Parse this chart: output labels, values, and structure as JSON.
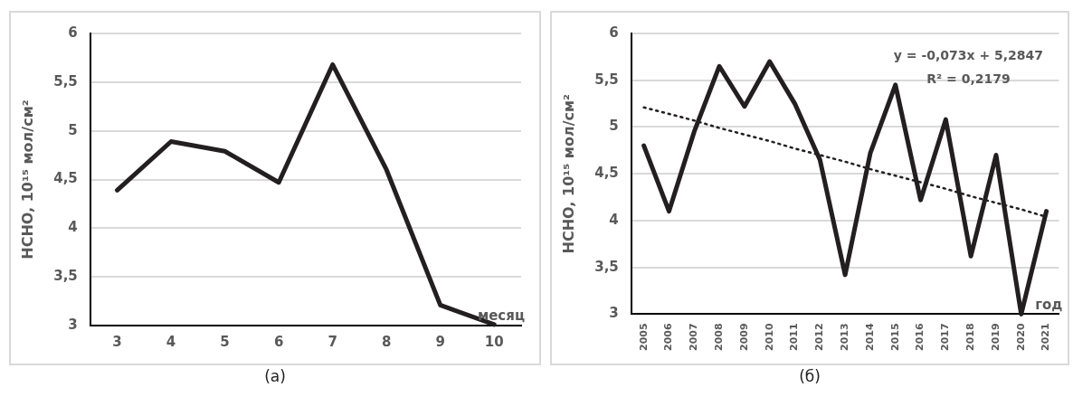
{
  "chart_data": [
    {
      "type": "line",
      "title": "(a)",
      "xlabel": "месяц",
      "ylabel": "HCHO, 10¹⁵ мол/см²",
      "categories": [
        "3",
        "4",
        "5",
        "6",
        "7",
        "8",
        "9",
        "10"
      ],
      "series": [
        {
          "color": "#231f20",
          "values": [
            4.39,
            4.89,
            4.79,
            4.47,
            5.68,
            4.6,
            3.21,
            3.01
          ]
        }
      ],
      "ylim": [
        3,
        6
      ],
      "yticks": [
        3,
        {
          "value": 3.5,
          "label": "3,5"
        },
        4,
        {
          "value": 4.5,
          "label": "4,5"
        },
        5,
        {
          "value": 5.5,
          "label": "5,5"
        },
        6
      ],
      "grid": "y",
      "line_style": "solid",
      "marker": "none"
    },
    {
      "type": "line",
      "title": "(б)",
      "xlabel": "год",
      "ylabel": "HCHO, 10¹⁵ мол/см²",
      "categories": [
        "2005",
        "2006",
        "2007",
        "2008",
        "2009",
        "2010",
        "2011",
        "2012",
        "2013",
        "2014",
        "2015",
        "2016",
        "2017",
        "2018",
        "2019",
        "2020",
        "2021"
      ],
      "series": [
        {
          "color": "#231f20",
          "values": [
            4.8,
            4.1,
            4.95,
            5.65,
            5.22,
            5.7,
            5.25,
            4.65,
            3.42,
            4.72,
            5.45,
            4.22,
            5.08,
            3.62,
            4.7,
            3.0,
            4.1
          ]
        },
        {
          "type": "line",
          "color": "#231f20",
          "line_style": "dotted",
          "values": [
            5.21,
            5.14,
            5.07,
            4.99,
            4.92,
            4.85,
            4.77,
            4.7,
            4.63,
            4.55,
            4.48,
            4.41,
            4.34,
            4.26,
            4.19,
            4.12,
            4.04
          ]
        }
      ],
      "annotations": [
        "y = -0,073x + 5,2847",
        "R² = 0,2179"
      ],
      "ylim": [
        3,
        6
      ],
      "yticks": [
        3,
        {
          "value": 3.5,
          "label": "3,5"
        },
        4,
        {
          "value": 4.5,
          "label": "4,5"
        },
        5,
        {
          "value": 5.5,
          "label": "5,5"
        },
        6
      ],
      "grid": "y",
      "line_style": "solid",
      "marker": "none"
    }
  ]
}
